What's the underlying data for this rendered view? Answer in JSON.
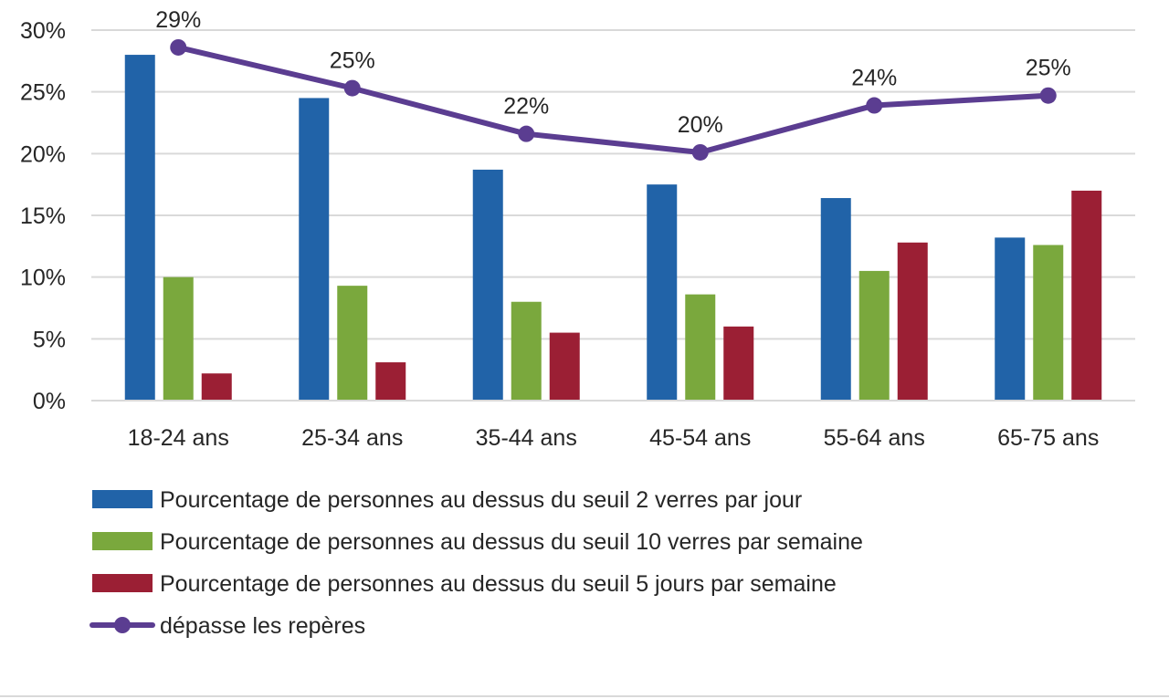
{
  "chart_data": {
    "type": "bar",
    "categories": [
      "18-24 ans",
      "25-34 ans",
      "35-44 ans",
      "45-54 ans",
      "55-64 ans",
      "65-75 ans"
    ],
    "series": [
      {
        "name": "Pourcentage de personnes au dessus du seuil 2 verres par jour",
        "type": "bar",
        "color": "#2163a8",
        "values": [
          28.0,
          24.5,
          18.7,
          17.5,
          16.4,
          13.2
        ]
      },
      {
        "name": "Pourcentage de personnes au dessus du seuil 10 verres par semaine",
        "type": "bar",
        "color": "#7aa83d",
        "values": [
          10.0,
          9.3,
          8.0,
          8.6,
          10.5,
          12.6
        ]
      },
      {
        "name": "Pourcentage de personnes au dessus du seuil 5 jours par semaine",
        "type": "bar",
        "color": "#9b1f34",
        "values": [
          2.2,
          3.1,
          5.5,
          6.0,
          12.8,
          17.0
        ]
      },
      {
        "name": "dépasse les repères",
        "type": "line",
        "color": "#5b3d91",
        "values": [
          28.6,
          25.3,
          21.6,
          20.1,
          23.9,
          24.7
        ],
        "labels": [
          "29%",
          "25%",
          "22%",
          "20%",
          "24%",
          "25%"
        ]
      }
    ],
    "ylim": [
      0,
      30
    ],
    "yticks": [
      "0%",
      "5%",
      "10%",
      "15%",
      "20%",
      "25%",
      "30%"
    ],
    "ytick_values": [
      0,
      5,
      10,
      15,
      20,
      25,
      30
    ],
    "grid": true,
    "legend_position": "bottom"
  }
}
